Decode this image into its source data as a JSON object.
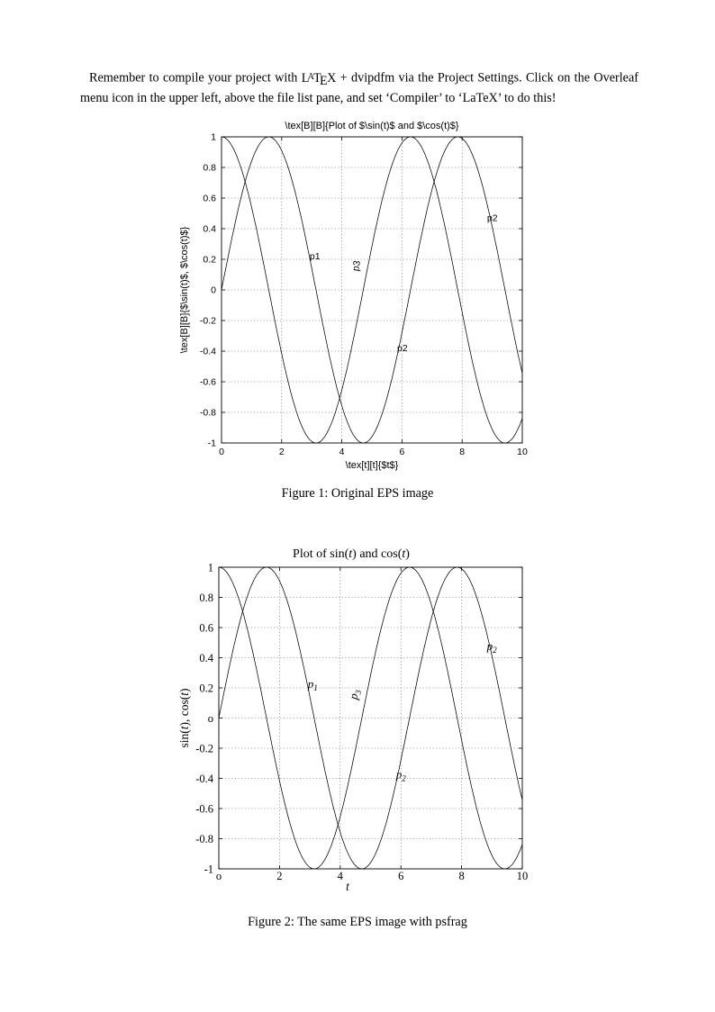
{
  "page": {
    "paragraph": {
      "part1": "Remember to compile your project with ",
      "latex": [
        "L",
        "A",
        "T",
        "E",
        "X"
      ],
      "part2": " + dvipdfm via the Project Settings. Click on the Overleaf menu icon in the upper left, above the file list pane, and set ‘Compiler’ to ‘LaTeX’ to do this!"
    }
  },
  "chart_data": [
    {
      "type": "line",
      "title": "\\tex[B][B]{Plot of $\\sin(t)$ and $\\cos(t)$}",
      "title_segments": [
        {
          "text": "\\tex[B][B]{Plot of $\\sin(t)$ and $\\cos(t)$}"
        }
      ],
      "xlabel_segments": [
        {
          "text": "\\tex[t][t]{$t$}"
        }
      ],
      "ylabel_segments": [
        {
          "text": "\\tex[B][B]{$\\sin(t)$, $\\cos(t)$}"
        }
      ],
      "x_range": [
        0,
        10
      ],
      "y_range": [
        -1,
        1
      ],
      "x_ticks": {
        "values": [
          0,
          2,
          4,
          6,
          8,
          10
        ],
        "labels": [
          "0",
          "2",
          "4",
          "6",
          "8",
          "10"
        ]
      },
      "y_ticks": {
        "values": [
          -1,
          -0.8,
          -0.6,
          -0.4,
          -0.2,
          0,
          0.2,
          0.4,
          0.6,
          0.8,
          1
        ],
        "labels": [
          "-1",
          "-0.8",
          "-0.6",
          "-0.4",
          "-0.2",
          "0",
          "0.2",
          "0.4",
          "0.6",
          "0.8",
          "1"
        ]
      },
      "grid": "dotted",
      "legend": "none",
      "series": [
        {
          "name": "sin(t)",
          "fn": "sin",
          "amplitude": 1
        },
        {
          "name": "cos(t)",
          "fn": "cos",
          "amplitude": 1
        }
      ],
      "annotations": [
        {
          "x": 2.93,
          "y": 0.2,
          "rotate": 0,
          "segments": [
            {
              "text": "p1"
            }
          ]
        },
        {
          "x": 4.55,
          "y": 0.12,
          "rotate": -80,
          "segments": [
            {
              "text": "p3"
            }
          ]
        },
        {
          "x": 8.83,
          "y": 0.45,
          "rotate": 0,
          "segments": [
            {
              "text": "p2"
            }
          ]
        },
        {
          "x": 5.84,
          "y": -0.4,
          "rotate": 0,
          "segments": [
            {
              "text": "p2"
            }
          ]
        }
      ]
    },
    {
      "type": "line",
      "title": "Plot of sin(t) and cos(t)",
      "title_segments": [
        {
          "text": "Plot of sin("
        },
        {
          "text": "t",
          "italic": true
        },
        {
          "text": ") and cos("
        },
        {
          "text": "t",
          "italic": true
        },
        {
          "text": ")"
        }
      ],
      "xlabel_segments": [
        {
          "text": "t",
          "italic": true
        }
      ],
      "ylabel_segments": [
        {
          "text": "sin("
        },
        {
          "text": "t",
          "italic": true
        },
        {
          "text": "), cos("
        },
        {
          "text": "t",
          "italic": true
        },
        {
          "text": ")"
        }
      ],
      "x_range": [
        0,
        10
      ],
      "y_range": [
        -1,
        1
      ],
      "x_ticks": {
        "values": [
          0,
          2,
          4,
          6,
          8,
          10
        ],
        "labels": [
          "o",
          "2",
          "4",
          "6",
          "8",
          "10"
        ]
      },
      "y_ticks": {
        "values": [
          -1,
          -0.8,
          -0.6,
          -0.4,
          -0.2,
          0,
          0.2,
          0.4,
          0.6,
          0.8,
          1
        ],
        "labels": [
          "-1",
          "-0.8",
          "-0.6",
          "-0.4",
          "-0.2",
          "o",
          "0.2",
          "0.4",
          "0.6",
          "0.8",
          "1"
        ]
      },
      "grid": "dotted",
      "legend": "none",
      "series": [
        {
          "name": "sin(t)",
          "fn": "sin",
          "amplitude": 1
        },
        {
          "name": "cos(t)",
          "fn": "cos",
          "amplitude": 1
        }
      ],
      "annotations": [
        {
          "x": 2.93,
          "y": 0.2,
          "rotate": 0,
          "segments": [
            {
              "text": "p",
              "italic": true
            },
            {
              "text": "1",
              "italic": true,
              "sub": true
            }
          ]
        },
        {
          "x": 4.55,
          "y": 0.12,
          "rotate": -80,
          "segments": [
            {
              "text": "p",
              "italic": true
            },
            {
              "text": "3",
              "italic": true,
              "sub": true
            }
          ]
        },
        {
          "x": 8.83,
          "y": 0.45,
          "rotate": 0,
          "segments": [
            {
              "text": "p",
              "italic": true
            },
            {
              "text": "2",
              "italic": true,
              "sub": true
            }
          ]
        },
        {
          "x": 5.84,
          "y": -0.4,
          "rotate": 0,
          "segments": [
            {
              "text": "p",
              "italic": true
            },
            {
              "text": "2",
              "italic": true,
              "sub": true
            }
          ]
        }
      ]
    }
  ],
  "figures": [
    {
      "caption": "Figure 1: Original EPS image"
    },
    {
      "caption": "Figure 2: The same EPS image with psfrag"
    }
  ]
}
